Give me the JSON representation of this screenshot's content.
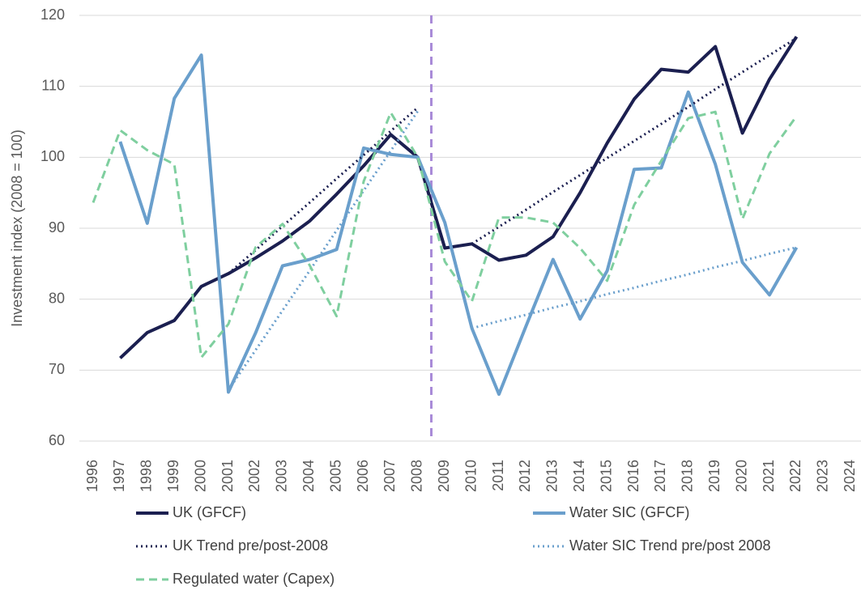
{
  "chart_data": {
    "type": "line",
    "y_label": "Investment index (2008 = 100)",
    "categories": [
      "1996",
      "1997",
      "1998",
      "1999",
      "2000",
      "2001",
      "2002",
      "2003",
      "2004",
      "2005",
      "2006",
      "2007",
      "2008",
      "2009",
      "2010",
      "2011",
      "2012",
      "2013",
      "2014",
      "2015",
      "2016",
      "2017",
      "2018",
      "2019",
      "2020",
      "2021",
      "2022",
      "2023",
      "2024"
    ],
    "ylim": [
      60,
      120
    ],
    "yticks": [
      60,
      70,
      80,
      90,
      100,
      110,
      120
    ],
    "grid": true,
    "series": [
      {
        "name": "UK (GFCF)",
        "color": "#1b1f50",
        "dash": "solid",
        "values": [
          null,
          71.7,
          75.3,
          77.0,
          81.8,
          83.6,
          85.8,
          88.2,
          91.0,
          94.8,
          98.8,
          103.2,
          100.0,
          87.2,
          87.8,
          85.5,
          86.2,
          88.8,
          95.0,
          102.0,
          108.2,
          112.4,
          112.0,
          115.6,
          103.4,
          111.0,
          117.0,
          null,
          null
        ]
      },
      {
        "name": "Water SIC (GFCF)",
        "color": "#6a9fcc",
        "dash": "solid",
        "values": [
          null,
          102.2,
          90.7,
          108.3,
          114.4,
          66.9,
          75.2,
          84.7,
          85.6,
          87.0,
          101.3,
          100.4,
          100.0,
          90.8,
          75.9,
          66.6,
          76.2,
          85.6,
          77.2,
          84.0,
          98.3,
          98.5,
          109.2,
          99.0,
          85.2,
          80.6,
          87.3,
          null,
          null
        ]
      },
      {
        "name": "UK Trend pre/post-2008",
        "color": "#1b1f50",
        "dash": "dotted",
        "values": [
          null,
          null,
          null,
          null,
          null,
          83.6,
          86.9,
          90.3,
          93.6,
          97.0,
          100.3,
          103.7,
          107.0,
          null,
          87.8,
          90.2,
          92.6,
          95.1,
          97.5,
          99.9,
          102.3,
          104.7,
          107.1,
          109.6,
          112.0,
          114.4,
          116.8,
          null,
          null
        ]
      },
      {
        "name": "Water SIC Trend pre/post 2008",
        "color": "#6a9fcc",
        "dash": "dotted",
        "values": [
          null,
          null,
          null,
          null,
          null,
          67.2,
          72.8,
          78.4,
          84.0,
          89.7,
          95.3,
          100.9,
          106.5,
          null,
          75.9,
          76.9,
          77.8,
          78.8,
          79.7,
          80.7,
          81.6,
          82.6,
          83.5,
          84.5,
          85.4,
          86.4,
          87.3,
          null,
          null
        ]
      },
      {
        "name": "Regulated water (Capex)",
        "color": "#7fcf9f",
        "dash": "dashed",
        "values": [
          93.6,
          103.8,
          101.0,
          99.0,
          71.8,
          76.5,
          87.3,
          90.6,
          84.8,
          77.6,
          96.6,
          106.3,
          100.0,
          85.3,
          79.7,
          91.5,
          91.5,
          90.8,
          87.2,
          82.6,
          93.3,
          99.5,
          105.5,
          106.4,
          91.3,
          100.5,
          105.8,
          null,
          null
        ]
      }
    ]
  }
}
